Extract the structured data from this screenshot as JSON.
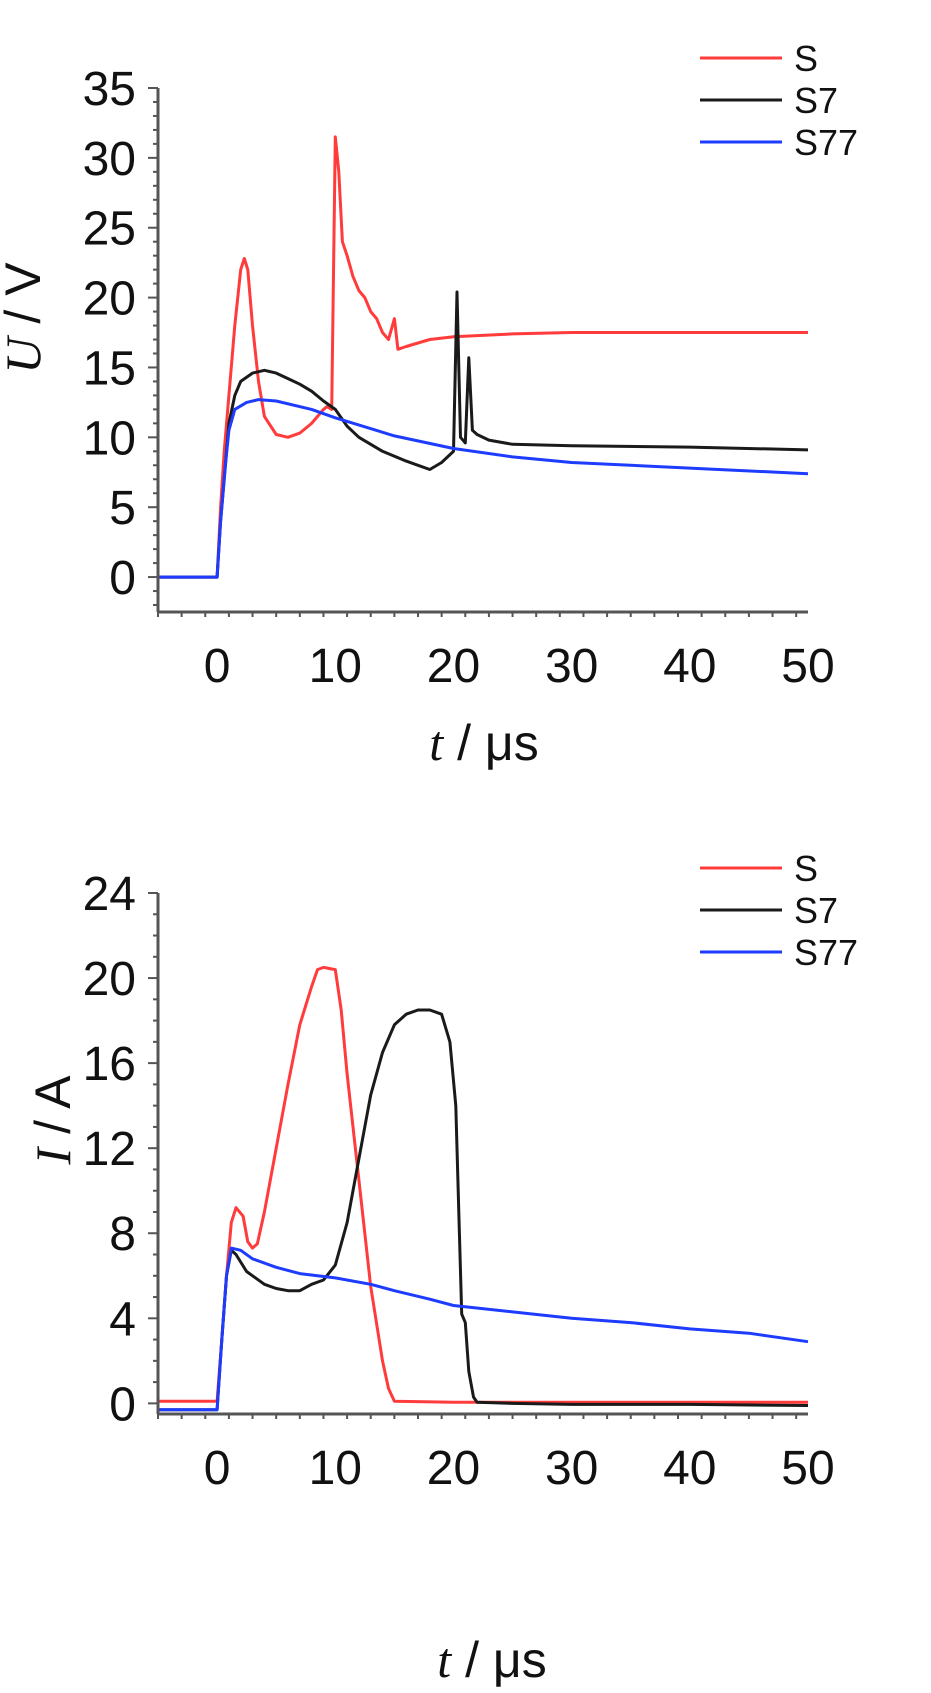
{
  "chart_data": [
    {
      "type": "line",
      "title": "",
      "xlabel": "t",
      "xlabel_sep": " / ",
      "xunit": "μs",
      "ylabel": "U",
      "ylabel_sep": " / ",
      "yunit": "V",
      "xlim": [
        -5,
        50
      ],
      "ylim": [
        -2.5,
        35
      ],
      "xticks": [
        0,
        10,
        20,
        30,
        40,
        50
      ],
      "xtick_labels": [
        "0",
        "10",
        "20",
        "30",
        "40",
        "50"
      ],
      "yticks": [
        0,
        5,
        10,
        15,
        20,
        25,
        30,
        35
      ],
      "ytick_labels": [
        "0",
        "5",
        "10",
        "15",
        "20",
        "25",
        "30",
        "35"
      ],
      "grid": false,
      "legend": "top-right",
      "series": [
        {
          "name": "S",
          "color": "#ff3b3b",
          "points": [
            [
              -5,
              0
            ],
            [
              -1,
              0
            ],
            [
              0,
              0
            ],
            [
              0.3,
              5
            ],
            [
              0.6,
              9
            ],
            [
              1,
              13
            ],
            [
              1.5,
              18
            ],
            [
              2,
              22
            ],
            [
              2.3,
              22.8
            ],
            [
              2.6,
              22
            ],
            [
              3,
              18
            ],
            [
              3.5,
              14
            ],
            [
              4,
              11.5
            ],
            [
              5,
              10.2
            ],
            [
              6,
              10
            ],
            [
              7,
              10.3
            ],
            [
              8,
              11
            ],
            [
              9,
              12
            ],
            [
              9.3,
              12.2
            ],
            [
              9.7,
              12
            ],
            [
              10,
              31.5
            ],
            [
              10.3,
              29
            ],
            [
              10.6,
              24
            ],
            [
              11,
              23
            ],
            [
              11.5,
              21.5
            ],
            [
              12,
              20.5
            ],
            [
              12.5,
              20
            ],
            [
              13,
              19
            ],
            [
              13.5,
              18.5
            ],
            [
              14,
              17.5
            ],
            [
              14.5,
              17
            ],
            [
              15,
              18.5
            ],
            [
              15.3,
              16.3
            ],
            [
              16,
              16.5
            ],
            [
              18,
              17
            ],
            [
              20,
              17.2
            ],
            [
              25,
              17.4
            ],
            [
              30,
              17.5
            ],
            [
              40,
              17.5
            ],
            [
              50,
              17.5
            ]
          ]
        },
        {
          "name": "S7",
          "color": "#1a1a1a",
          "points": [
            [
              -5,
              0
            ],
            [
              -1,
              0
            ],
            [
              0,
              0
            ],
            [
              0.3,
              4
            ],
            [
              0.7,
              8
            ],
            [
              1,
              11
            ],
            [
              1.5,
              13
            ],
            [
              2,
              14
            ],
            [
              3,
              14.6
            ],
            [
              4,
              14.8
            ],
            [
              5,
              14.6
            ],
            [
              6,
              14.2
            ],
            [
              7,
              13.8
            ],
            [
              8,
              13.3
            ],
            [
              9,
              12.6
            ],
            [
              10,
              12
            ],
            [
              11,
              10.8
            ],
            [
              12,
              10
            ],
            [
              14,
              9
            ],
            [
              16,
              8.3
            ],
            [
              17,
              8
            ],
            [
              18,
              7.7
            ],
            [
              19,
              8.2
            ],
            [
              20,
              9
            ],
            [
              20.3,
              20.4
            ],
            [
              20.6,
              10
            ],
            [
              21,
              9.6
            ],
            [
              21.3,
              15.7
            ],
            [
              21.6,
              10.5
            ],
            [
              22,
              10.2
            ],
            [
              23,
              9.8
            ],
            [
              25,
              9.5
            ],
            [
              30,
              9.4
            ],
            [
              40,
              9.3
            ],
            [
              50,
              9.1
            ]
          ]
        },
        {
          "name": "S77",
          "color": "#1e3cff",
          "points": [
            [
              -5,
              0
            ],
            [
              -1,
              0
            ],
            [
              0,
              0
            ],
            [
              0.3,
              4
            ],
            [
              0.7,
              8
            ],
            [
              1,
              10.5
            ],
            [
              1.5,
              12
            ],
            [
              2.5,
              12.5
            ],
            [
              3.5,
              12.7
            ],
            [
              5,
              12.6
            ],
            [
              8,
              12
            ],
            [
              10,
              11.4
            ],
            [
              15,
              10.1
            ],
            [
              20,
              9.2
            ],
            [
              25,
              8.6
            ],
            [
              30,
              8.2
            ],
            [
              40,
              7.8
            ],
            [
              50,
              7.4
            ]
          ]
        }
      ]
    },
    {
      "type": "line",
      "title": "",
      "xlabel": "t",
      "xlabel_sep": " / ",
      "xunit": "μs",
      "ylabel": "I",
      "ylabel_sep": " / ",
      "yunit": "A",
      "xlim": [
        -5,
        50
      ],
      "ylim": [
        -0.5,
        24
      ],
      "xticks": [
        0,
        10,
        20,
        30,
        40,
        50
      ],
      "xtick_labels": [
        "0",
        "10",
        "20",
        "30",
        "40",
        "50"
      ],
      "yticks": [
        0,
        4,
        8,
        12,
        16,
        20,
        24
      ],
      "ytick_labels": [
        "0",
        "4",
        "8",
        "12",
        "16",
        "20",
        "24"
      ],
      "grid": false,
      "legend": "top-right",
      "series": [
        {
          "name": "S",
          "color": "#ff3b3b",
          "points": [
            [
              -5,
              0.1
            ],
            [
              -1,
              0.1
            ],
            [
              0,
              0.1
            ],
            [
              0.4,
              3
            ],
            [
              0.8,
              6
            ],
            [
              1.2,
              8.5
            ],
            [
              1.6,
              9.2
            ],
            [
              2.2,
              8.8
            ],
            [
              2.6,
              7.6
            ],
            [
              3,
              7.3
            ],
            [
              3.4,
              7.5
            ],
            [
              4,
              9
            ],
            [
              5,
              12
            ],
            [
              6,
              15
            ],
            [
              7,
              17.8
            ],
            [
              8,
              19.6
            ],
            [
              8.5,
              20.4
            ],
            [
              9,
              20.5
            ],
            [
              10,
              20.4
            ],
            [
              10.5,
              18.5
            ],
            [
              11,
              15.5
            ],
            [
              12,
              10.5
            ],
            [
              13,
              5.5
            ],
            [
              14,
              2
            ],
            [
              14.5,
              0.7
            ],
            [
              15,
              0.1
            ],
            [
              20,
              0.05
            ],
            [
              30,
              0.05
            ],
            [
              40,
              0.05
            ],
            [
              50,
              0.05
            ]
          ]
        },
        {
          "name": "S7",
          "color": "#1a1a1a",
          "points": [
            [
              -5,
              -0.3
            ],
            [
              -1,
              -0.3
            ],
            [
              0,
              -0.3
            ],
            [
              0.4,
              3
            ],
            [
              0.8,
              6
            ],
            [
              1.2,
              7.2
            ],
            [
              1.6,
              7
            ],
            [
              2.5,
              6.2
            ],
            [
              4,
              5.6
            ],
            [
              5,
              5.4
            ],
            [
              6,
              5.3
            ],
            [
              7,
              5.3
            ],
            [
              8,
              5.6
            ],
            [
              9,
              5.8
            ],
            [
              10,
              6.5
            ],
            [
              11,
              8.5
            ],
            [
              12,
              11.5
            ],
            [
              13,
              14.5
            ],
            [
              14,
              16.5
            ],
            [
              15,
              17.8
            ],
            [
              16,
              18.3
            ],
            [
              17,
              18.5
            ],
            [
              18,
              18.5
            ],
            [
              19,
              18.3
            ],
            [
              19.7,
              17
            ],
            [
              20.2,
              14
            ],
            [
              20.5,
              8
            ],
            [
              20.7,
              4.2
            ],
            [
              21,
              3.8
            ],
            [
              21.3,
              1.5
            ],
            [
              21.7,
              0.3
            ],
            [
              22,
              0.05
            ],
            [
              25,
              0
            ],
            [
              30,
              -0.05
            ],
            [
              40,
              -0.05
            ],
            [
              50,
              -0.1
            ]
          ]
        },
        {
          "name": "S77",
          "color": "#1e3cff",
          "points": [
            [
              -5,
              -0.3
            ],
            [
              -1,
              -0.3
            ],
            [
              0,
              -0.3
            ],
            [
              0.4,
              3
            ],
            [
              0.8,
              6
            ],
            [
              1.2,
              7.3
            ],
            [
              2,
              7.2
            ],
            [
              3,
              6.8
            ],
            [
              5,
              6.4
            ],
            [
              7,
              6.1
            ],
            [
              10,
              5.9
            ],
            [
              13,
              5.6
            ],
            [
              15,
              5.3
            ],
            [
              18,
              4.9
            ],
            [
              20,
              4.6
            ],
            [
              25,
              4.3
            ],
            [
              30,
              4
            ],
            [
              35,
              3.8
            ],
            [
              40,
              3.5
            ],
            [
              45,
              3.3
            ],
            [
              50,
              2.9
            ]
          ]
        }
      ]
    }
  ]
}
